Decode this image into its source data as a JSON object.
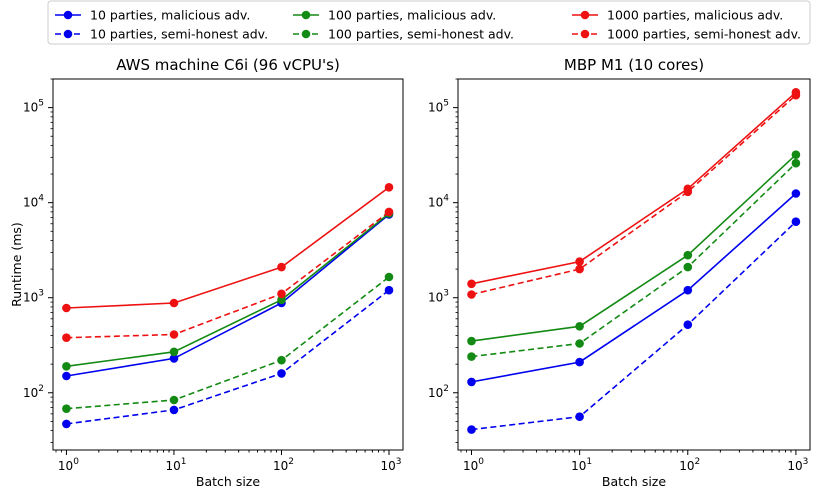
{
  "chart_data": [
    {
      "type": "line",
      "title": "AWS machine C6i (96 vCPU's)",
      "xlabel": "Batch size",
      "ylabel": "Runtime (ms)",
      "x": [
        1,
        10,
        100,
        1000
      ],
      "xscale": "log",
      "yscale": "log",
      "xtick_labels": [
        {
          "base": "10",
          "exp": "0"
        },
        {
          "base": "10",
          "exp": "1"
        },
        {
          "base": "10",
          "exp": "2"
        },
        {
          "base": "10",
          "exp": "3"
        }
      ],
      "ytick_labels": [
        {
          "base": "10",
          "exp": "2"
        },
        {
          "base": "10",
          "exp": "3"
        },
        {
          "base": "10",
          "exp": "4"
        },
        {
          "base": "10",
          "exp": "5"
        }
      ],
      "ylim": [
        25,
        200000
      ],
      "series": [
        {
          "name": "10 parties, malicious adv.",
          "color": "#0000ee",
          "style": "solid",
          "values": [
            150,
            230,
            880,
            7500
          ]
        },
        {
          "name": "10 parties, semi-honest adv.",
          "color": "#0000ee",
          "style": "dashed",
          "values": [
            47,
            66,
            160,
            1200
          ]
        },
        {
          "name": "100 parties, malicious adv.",
          "color": "#138a13",
          "style": "solid",
          "values": [
            190,
            270,
            950,
            7700
          ]
        },
        {
          "name": "100 parties, semi-honest adv.",
          "color": "#138a13",
          "style": "dashed",
          "values": [
            68,
            84,
            220,
            1650
          ]
        },
        {
          "name": "1000 parties, malicious adv.",
          "color": "#ee1111",
          "style": "solid",
          "values": [
            780,
            880,
            2100,
            14500
          ]
        },
        {
          "name": "1000 parties, semi-honest adv.",
          "color": "#ee1111",
          "style": "dashed",
          "values": [
            380,
            410,
            1100,
            8000
          ]
        }
      ]
    },
    {
      "type": "line",
      "title": "MBP M1 (10 cores)",
      "xlabel": "Batch size",
      "ylabel": "",
      "x": [
        1,
        10,
        100,
        1000
      ],
      "xscale": "log",
      "yscale": "log",
      "xtick_labels": [
        {
          "base": "10",
          "exp": "0"
        },
        {
          "base": "10",
          "exp": "1"
        },
        {
          "base": "10",
          "exp": "2"
        },
        {
          "base": "10",
          "exp": "3"
        }
      ],
      "ytick_labels": [
        {
          "base": "10",
          "exp": "2"
        },
        {
          "base": "10",
          "exp": "3"
        },
        {
          "base": "10",
          "exp": "4"
        },
        {
          "base": "10",
          "exp": "5"
        }
      ],
      "ylim": [
        25,
        200000
      ],
      "series": [
        {
          "name": "10 parties, malicious adv.",
          "color": "#0000ee",
          "style": "solid",
          "values": [
            130,
            210,
            1200,
            12500
          ]
        },
        {
          "name": "10 parties, semi-honest adv.",
          "color": "#0000ee",
          "style": "dashed",
          "values": [
            41,
            56,
            520,
            6300
          ]
        },
        {
          "name": "100 parties, malicious adv.",
          "color": "#138a13",
          "style": "solid",
          "values": [
            350,
            500,
            2800,
            32000
          ]
        },
        {
          "name": "100 parties, semi-honest adv.",
          "color": "#138a13",
          "style": "dashed",
          "values": [
            240,
            330,
            2100,
            26000
          ]
        },
        {
          "name": "1000 parties, malicious adv.",
          "color": "#ee1111",
          "style": "solid",
          "values": [
            1400,
            2400,
            14000,
            145000
          ]
        },
        {
          "name": "1000 parties, semi-honest adv.",
          "color": "#ee1111",
          "style": "dashed",
          "values": [
            1080,
            2000,
            13000,
            135000
          ]
        }
      ]
    }
  ],
  "legend": {
    "placement": "top",
    "entries": [
      {
        "label": "10 parties, malicious adv.",
        "color": "#0000ee",
        "style": "solid"
      },
      {
        "label": "10 parties, semi-honest adv.",
        "color": "#0000ee",
        "style": "dashed"
      },
      {
        "label": "100 parties, malicious adv.",
        "color": "#138a13",
        "style": "solid"
      },
      {
        "label": "100 parties, semi-honest adv.",
        "color": "#138a13",
        "style": "dashed"
      },
      {
        "label": "1000 parties, malicious adv.",
        "color": "#ee1111",
        "style": "solid"
      },
      {
        "label": "1000 parties, semi-honest adv.",
        "color": "#ee1111",
        "style": "dashed"
      }
    ]
  }
}
